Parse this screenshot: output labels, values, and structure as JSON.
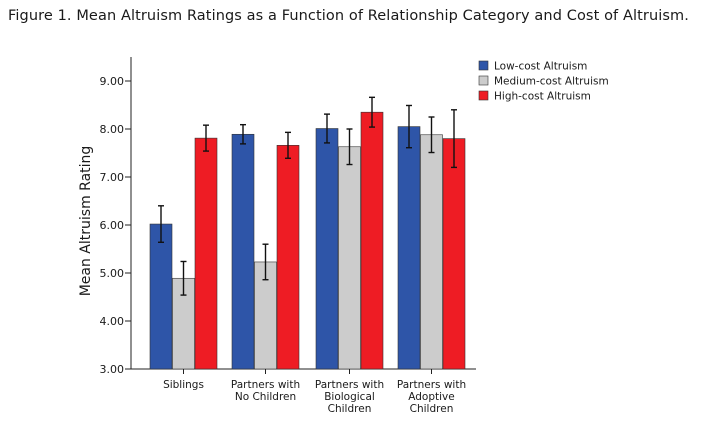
{
  "chart_data": {
    "type": "bar",
    "title": "Figure 1. Mean Altruism Ratings as a Function of Relationship Category and Cost of Altruism.",
    "ylabel": "Mean Altruism Rating",
    "xlabel": "",
    "ylim": [
      3.0,
      9.5
    ],
    "yticks": [
      "3.00",
      "4.00",
      "5.00",
      "6.00",
      "7.00",
      "8.00",
      "9.00"
    ],
    "categories": [
      [
        "Siblings"
      ],
      [
        "Partners with",
        "No Children"
      ],
      [
        "Partners with",
        "Biological",
        "Children"
      ],
      [
        "Partners with",
        "Adoptive",
        "Children"
      ]
    ],
    "series": [
      {
        "name": "Low-cost Altruism",
        "color": "#2e55a8",
        "values": [
          6.02,
          7.89,
          8.01,
          8.05
        ],
        "error": [
          0.38,
          0.2,
          0.3,
          0.44
        ]
      },
      {
        "name": "Medium-cost Altruism",
        "color": "#cccccc",
        "values": [
          4.89,
          5.23,
          7.63,
          7.88
        ],
        "error": [
          0.35,
          0.37,
          0.37,
          0.37
        ]
      },
      {
        "name": "High-cost Altruism",
        "color": "#ee1c24",
        "values": [
          7.81,
          7.66,
          8.35,
          7.8
        ],
        "error": [
          0.27,
          0.27,
          0.31,
          0.6
        ]
      }
    ],
    "grid": false,
    "legend": "top-right"
  }
}
